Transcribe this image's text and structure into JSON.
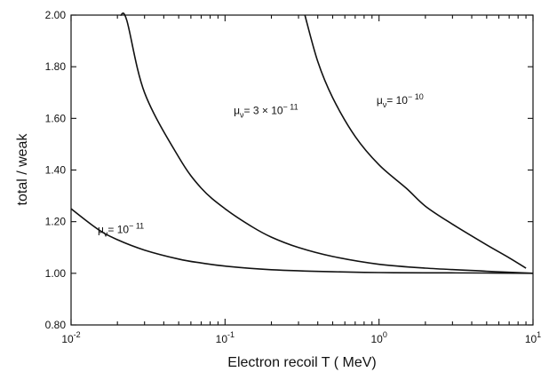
{
  "chart_data": {
    "type": "line",
    "xlabel": "Electron recoil T ( MeV)",
    "ylabel": "total / weak",
    "x_scale": "log",
    "xlim": [
      0.01,
      10
    ],
    "ylim": [
      0.8,
      2.0
    ],
    "x_ticks": [
      {
        "value": 0.01,
        "base": "10",
        "exp": "-2"
      },
      {
        "value": 0.1,
        "base": "10",
        "exp": "-1"
      },
      {
        "value": 1,
        "base": "10",
        "exp": "0"
      },
      {
        "value": 10,
        "base": "10",
        "exp": "1"
      }
    ],
    "y_ticks": [
      "0.80",
      "1.00",
      "1.20",
      "1.40",
      "1.60",
      "1.80",
      "2.00"
    ],
    "grid": false,
    "legend": "none",
    "series": [
      {
        "label_mu": "μ",
        "label_sub": "ν",
        "label_rest": "= 10",
        "label_exp": "− 11",
        "x": [
          0.01,
          0.015,
          0.02,
          0.03,
          0.05,
          0.07,
          0.1,
          0.2,
          0.5,
          1,
          2,
          5,
          10
        ],
        "y": [
          1.25,
          1.17,
          1.13,
          1.09,
          1.055,
          1.04,
          1.028,
          1.014,
          1.006,
          1.003,
          1.002,
          1.001,
          1.0
        ]
      },
      {
        "label_mu": "μ",
        "label_sub": "ν",
        "label_rest": "= 3 × 10",
        "label_exp": "− 11",
        "x": [
          0.021,
          0.023,
          0.03,
          0.05,
          0.07,
          0.1,
          0.15,
          0.2,
          0.3,
          0.5,
          1,
          2,
          5,
          10
        ],
        "y": [
          2.0,
          1.98,
          1.7,
          1.45,
          1.33,
          1.25,
          1.18,
          1.14,
          1.1,
          1.065,
          1.035,
          1.02,
          1.008,
          1.0
        ]
      },
      {
        "label_mu": "μ",
        "label_sub": "ν",
        "label_rest": "= 10",
        "label_exp": "− 10",
        "x": [
          0.33,
          0.4,
          0.5,
          0.7,
          1,
          1.5,
          2,
          3,
          5,
          7,
          9
        ],
        "y": [
          2.0,
          1.82,
          1.68,
          1.53,
          1.42,
          1.33,
          1.26,
          1.19,
          1.11,
          1.06,
          1.02
        ]
      }
    ]
  }
}
